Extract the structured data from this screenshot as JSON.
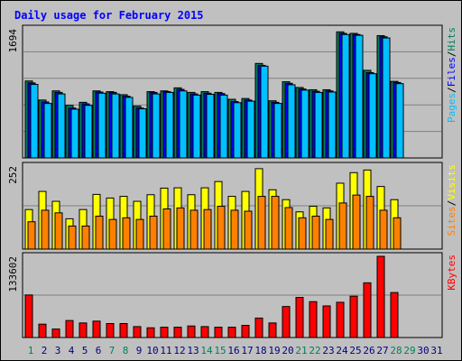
{
  "chart_data": {
    "type": "bar",
    "title": "Daily usage for February 2015",
    "colors": {
      "background": "#c0c0c0",
      "hits": "#00805c",
      "files": "#0000ff",
      "pages": "#00c0ff",
      "visits": "#ffff00",
      "sites": "#ff8000",
      "kbytes": "#ff0000",
      "title": "#0000ff",
      "weekend_label": "#00805c",
      "weekday_label": "#000080",
      "grid": "#808080"
    },
    "days": [
      "1",
      "2",
      "3",
      "4",
      "5",
      "6",
      "7",
      "8",
      "9",
      "10",
      "11",
      "12",
      "13",
      "14",
      "15",
      "16",
      "17",
      "18",
      "19",
      "20",
      "21",
      "22",
      "23",
      "24",
      "25",
      "26",
      "27",
      "28",
      "29",
      "30",
      "31"
    ],
    "weekend_days": [
      "1",
      "7",
      "8",
      "14",
      "15",
      "21",
      "22",
      "28",
      "29"
    ],
    "panels": {
      "hits": {
        "max_label": "1694",
        "legend": [
          "Pages",
          "/",
          "Files",
          "/",
          "Hits"
        ],
        "ymax": 1694,
        "series": [
          {
            "name": "Hits",
            "values": [
              1010,
              760,
              880,
              690,
              730,
              880,
              870,
              830,
              680,
              870,
              880,
              920,
              860,
              870,
              860,
              770,
              780,
              1240,
              750,
              1000,
              925,
              895,
              895,
              1655,
              1635,
              1150,
              1605,
              1005,
              0,
              0,
              0
            ]
          },
          {
            "name": "Files",
            "values": [
              985,
              735,
              860,
              655,
              710,
              865,
              860,
              810,
              655,
              860,
              870,
              900,
              840,
              850,
              845,
              740,
              760,
              1215,
              730,
              980,
              905,
              875,
              880,
              1635,
              1620,
              1120,
              1590,
              990,
              0,
              0,
              0
            ]
          },
          {
            "name": "Pages",
            "values": [
              965,
              715,
              840,
              640,
              690,
              850,
              840,
              795,
              645,
              840,
              860,
              880,
              825,
              835,
              825,
              725,
              745,
              1205,
              715,
              960,
              890,
              860,
              865,
              1620,
              1610,
              1105,
              1575,
              975,
              0,
              0,
              0
            ]
          }
        ]
      },
      "visits": {
        "max_label": "252",
        "legend": [
          "Sites",
          "/",
          "Visits"
        ],
        "ymax": 252,
        "series": [
          {
            "name": "Visits",
            "values": [
              120,
              175,
              145,
              92,
              120,
              166,
              155,
              160,
              145,
              165,
              185,
              186,
              165,
              186,
              205,
              160,
              175,
              244,
              180,
              150,
              113,
              130,
              125,
              200,
              232,
              240,
              190,
              150,
              0,
              0,
              0
            ]
          },
          {
            "name": "Sites",
            "values": [
              83,
              118,
              110,
              70,
              70,
              100,
              90,
              95,
              90,
              100,
              122,
              125,
              118,
              120,
              130,
              118,
              115,
              160,
              160,
              126,
              95,
              100,
              90,
              140,
              164,
              160,
              118,
              95,
              0,
              0,
              0
            ]
          }
        ]
      },
      "kbytes": {
        "max_label": "133602",
        "legend": [
          "KBytes"
        ],
        "ymax": 133602,
        "series": [
          {
            "name": "KBytes",
            "values": [
              70000,
              22000,
              14000,
              28000,
              24000,
              27000,
              23000,
              23000,
              18000,
              16000,
              17000,
              17000,
              19000,
              18000,
              17000,
              17000,
              20000,
              32000,
              24000,
              51000,
              66000,
              59000,
              52000,
              58000,
              68000,
              90000,
              133602,
              74000,
              0,
              0,
              0
            ]
          }
        ]
      }
    }
  }
}
